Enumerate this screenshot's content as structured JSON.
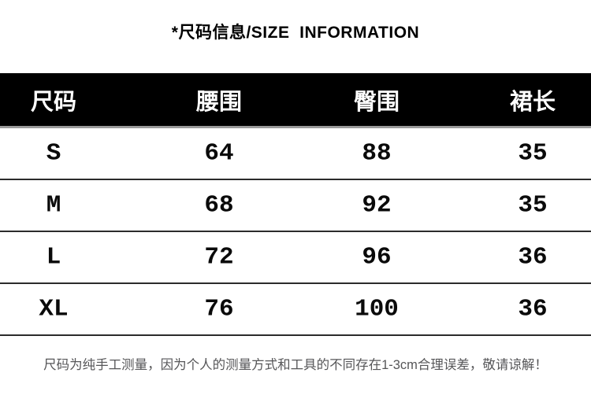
{
  "title": "*尺码信息/SIZE  INFORMATION",
  "size_table": {
    "columns": [
      {
        "label": "尺码"
      },
      {
        "label": "腰围"
      },
      {
        "label": "臀围"
      },
      {
        "label": "裙长"
      }
    ],
    "rows": [
      {
        "size": "S",
        "waist": "64",
        "hip": "88",
        "length": "35"
      },
      {
        "size": "M",
        "waist": "68",
        "hip": "92",
        "length": "35"
      },
      {
        "size": "L",
        "waist": "72",
        "hip": "96",
        "length": "36"
      },
      {
        "size": "XL",
        "waist": "76",
        "hip": "100",
        "length": "36"
      }
    ]
  },
  "note": "尺码为纯手工测量，因为个人的测量方式和工具的不同存在1-3cm合理误差，敬请谅解！",
  "colors": {
    "header_bg": "#000000",
    "header_text": "#ffffff",
    "header_underline": "#9a9a9a",
    "row_rule": "#2b2b2b",
    "data_text": "#0a0a0a",
    "title_text": "#000000",
    "note_text": "#565658",
    "page_bg": "#ffffff"
  }
}
